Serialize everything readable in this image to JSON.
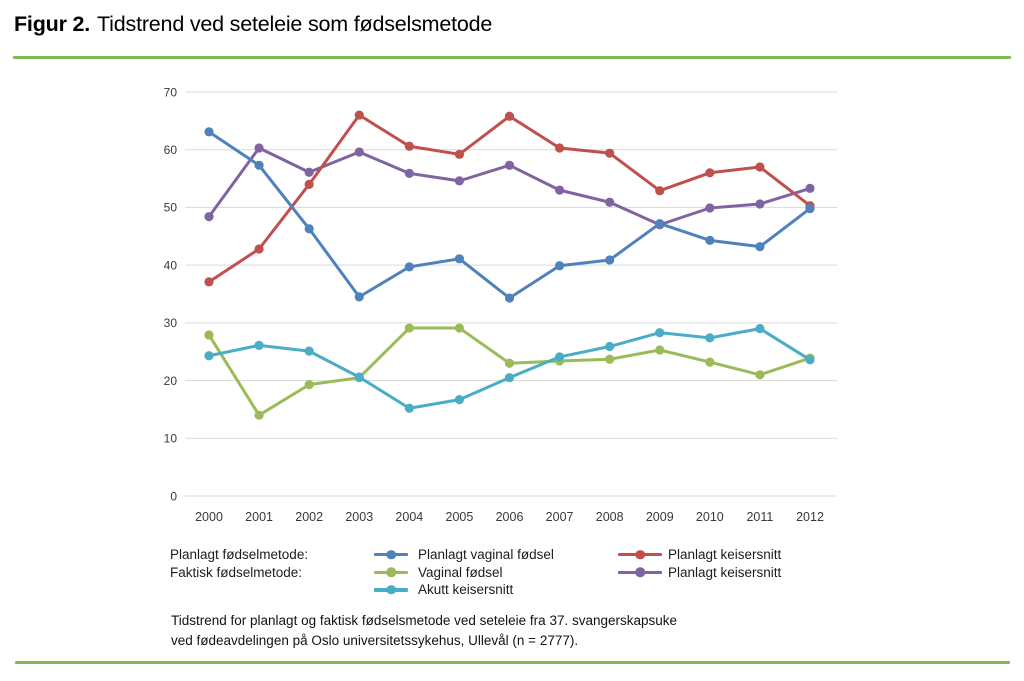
{
  "figure": {
    "label": "Figur 2.",
    "title": "Tidstrend ved seteleie som fødselsmetode",
    "rule_color": "#7DB954"
  },
  "chart_data": {
    "type": "line",
    "categories": [
      "2000",
      "2001",
      "2002",
      "2003",
      "2004",
      "2005",
      "2006",
      "2007",
      "2008",
      "2009",
      "2010",
      "2011",
      "2012"
    ],
    "series": [
      {
        "name": "Planlagt vaginal fødsel",
        "group": "Planlagt fødselmetode",
        "color": "#4F81BD",
        "values": [
          63.1,
          57.3,
          46.3,
          34.5,
          39.7,
          41.1,
          34.3,
          39.9,
          40.9,
          47.2,
          44.3,
          43.2,
          49.8
        ]
      },
      {
        "name": "Planlagt keisersnitt",
        "group": "Planlagt fødselmetode",
        "color": "#C0504D",
        "values": [
          37.1,
          42.8,
          54.0,
          66.0,
          60.6,
          59.2,
          65.8,
          60.3,
          59.4,
          52.9,
          56.0,
          57.0,
          50.3
        ]
      },
      {
        "name": "Vaginal fødsel",
        "group": "Faktisk fødselmetode",
        "color": "#9BBB59",
        "values": [
          27.9,
          14.0,
          19.3,
          20.5,
          29.1,
          29.1,
          23.0,
          23.4,
          23.7,
          25.3,
          23.2,
          21.0,
          23.9
        ]
      },
      {
        "name": "Planlagt keisersnitt",
        "group": "Faktisk fødselmetode",
        "color": "#8064A2",
        "values": [
          48.4,
          60.3,
          56.1,
          59.6,
          55.9,
          54.6,
          57.3,
          53.0,
          50.9,
          47.0,
          49.9,
          50.6,
          53.3
        ]
      },
      {
        "name": "Akutt keisersnitt",
        "group": "Faktisk fødselmetode",
        "color": "#4BACC6",
        "values": [
          24.3,
          26.1,
          25.1,
          20.6,
          15.2,
          16.7,
          20.5,
          24.1,
          25.9,
          28.3,
          27.4,
          29.0,
          23.6
        ]
      }
    ],
    "ylim": [
      0,
      70
    ],
    "yticks": [
      0,
      10,
      20,
      30,
      40,
      50,
      60,
      70
    ],
    "xlabel": "",
    "ylabel": "",
    "grid": "horizontal",
    "gridline_color": "#D9D9D9",
    "tick_color": "#3a3a3a",
    "legend_position": "bottom"
  },
  "legend": {
    "group_labels": [
      "Planlagt fødselmetode:",
      "Faktisk fødselmetode:"
    ],
    "column_a": [
      {
        "label": "Planlagt vaginal fødsel",
        "series": 0
      },
      {
        "label": "Vaginal fødsel",
        "series": 2
      },
      {
        "label": "Akutt keisersnitt",
        "series": 4
      }
    ],
    "column_b": [
      {
        "label": "Planlagt keisersnitt",
        "series": 1
      },
      {
        "label": "Planlagt keisersnitt",
        "series": 3
      }
    ]
  },
  "caption": {
    "line1": "Tidstrend for planlagt og faktisk fødselsmetode ved seteleie fra 37. svangerskapsuke",
    "line2": "ved fødeavdelingen på Oslo universitetssykehus, Ullevål (n = 2777)."
  }
}
